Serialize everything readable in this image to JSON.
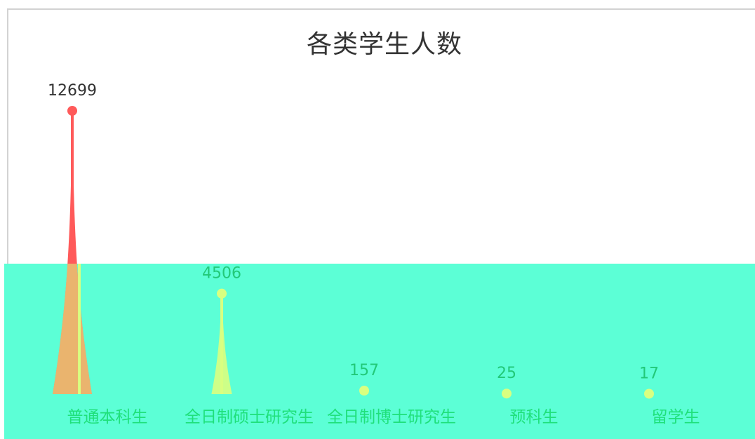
{
  "chart_data": {
    "type": "bar",
    "bar_shape": "pictorial-spike",
    "title": "各类学生人数",
    "categories": [
      "普通本科生",
      "全日制硕士研究生",
      "全日制博士研究生",
      "预科生",
      "留学生"
    ],
    "values": [
      12699,
      4506,
      157,
      25,
      17
    ],
    "value_labels": [
      "12699",
      "4506",
      "157",
      "25",
      "17"
    ],
    "xlabel": "",
    "ylabel": "",
    "ylim": [
      0,
      12699
    ],
    "grid": false,
    "legend": "none"
  },
  "colors": {
    "first_bar": "#ff5a5a",
    "other_bars": "#d9ff80",
    "overlay": "#5cffd6",
    "category_text": "#1fe07a",
    "value_label_text": "#22c978",
    "title_text": "#333333",
    "axis": "#d2d2d2"
  }
}
